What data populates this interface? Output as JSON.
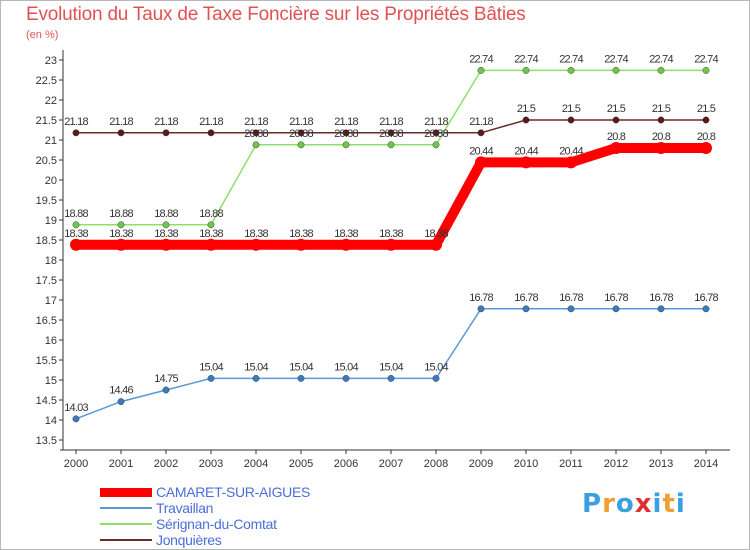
{
  "title": "Evolution du Taux de Taxe Foncière sur les Propriétés Bâties",
  "unit_label": "(en %)",
  "logo": {
    "letters": [
      "P",
      "r",
      "o",
      "x",
      "i",
      "t",
      "i"
    ],
    "colors": [
      "#3aa0e0",
      "#f0a030",
      "#3aa0e0",
      "#e03030",
      "#3aa0e0",
      "#f0a030",
      "#3aa0e0"
    ]
  },
  "chart_data": {
    "type": "line",
    "title": "Evolution du Taux de Taxe Foncière sur les Propriétés Bâties",
    "ylabel": "(en %)",
    "xlabel": "",
    "x": [
      "2000",
      "2001",
      "2002",
      "2003",
      "2004",
      "2005",
      "2006",
      "2007",
      "2008",
      "2009",
      "2010",
      "2011",
      "2012",
      "2013",
      "2014"
    ],
    "ylim": [
      13.5,
      23
    ],
    "yticks": [
      "13.5",
      "14",
      "14.5",
      "15",
      "15.5",
      "16",
      "16.5",
      "17",
      "17.5",
      "18",
      "18.5",
      "19",
      "19.5",
      "20",
      "20.5",
      "21",
      "21.5",
      "22",
      "22.5",
      "23"
    ],
    "grid": false,
    "legend_position": "bottom-left",
    "series": [
      {
        "name": "CAMARET-SUR-AIGUES",
        "color": "#ff0000",
        "values": [
          18.38,
          18.38,
          18.38,
          18.38,
          18.38,
          18.38,
          18.38,
          18.38,
          18.38,
          20.44,
          20.44,
          20.44,
          20.8,
          20.8,
          20.8
        ],
        "labels": [
          "18.38",
          "18.38",
          "18.38",
          "18.38",
          "18.38",
          "18.38",
          "18.38",
          "18.38",
          "18.38",
          "20.44",
          "20.44",
          "20.44",
          "20.8",
          "20.8",
          "20.8"
        ]
      },
      {
        "name": "Travaillan",
        "color": "#5a9ad6",
        "values": [
          14.03,
          14.46,
          14.75,
          15.04,
          15.04,
          15.04,
          15.04,
          15.04,
          15.04,
          16.78,
          16.78,
          16.78,
          16.78,
          16.78,
          16.78
        ],
        "labels": [
          "14.03",
          "14.46",
          "14.75",
          "15.04",
          "15.04",
          "15.04",
          "15.04",
          "15.04",
          "15.04",
          "16.78",
          "16.78",
          "16.78",
          "16.78",
          "16.78",
          "16.78"
        ]
      },
      {
        "name": "Sérignan-du-Comtat",
        "color": "#8ee06a",
        "values": [
          18.88,
          18.88,
          18.88,
          18.88,
          20.88,
          20.88,
          20.88,
          20.88,
          20.88,
          22.74,
          22.74,
          22.74,
          22.74,
          22.74,
          22.74
        ],
        "labels": [
          "18.88",
          "18.88",
          "18.88",
          "18.88",
          "20.88",
          "20.88",
          "20.88",
          "20.88",
          "20.88",
          "22.74",
          "22.74",
          "22.74",
          "22.74",
          "22.74",
          "22.74"
        ]
      },
      {
        "name": "Jonquières",
        "color": "#6a2a2a",
        "values": [
          21.18,
          21.18,
          21.18,
          21.18,
          21.18,
          21.18,
          21.18,
          21.18,
          21.18,
          21.18,
          21.5,
          21.5,
          21.5,
          21.5,
          21.5
        ],
        "labels": [
          "21.18",
          "21.18",
          "21.18",
          "21.18",
          "21.18",
          "21.18",
          "21.18",
          "21.18",
          "21.18",
          "21.18",
          "21.5",
          "21.5",
          "21.5",
          "21.5",
          "21.5"
        ]
      }
    ]
  }
}
